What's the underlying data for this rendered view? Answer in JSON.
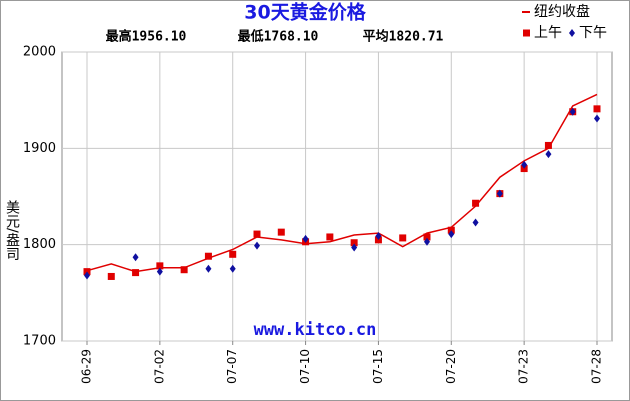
{
  "chart_data": {
    "type": "line",
    "title": "30天黄金价格",
    "stats": [
      "最高1956.10",
      "最低1768.10",
      "平均1820.71"
    ],
    "ylabel": "美元/盎司",
    "watermark": "www.kitco.cn",
    "categories": [
      "06-29",
      null,
      null,
      "07-02",
      null,
      null,
      "07-07",
      null,
      null,
      "07-10",
      null,
      null,
      "07-15",
      null,
      null,
      "07-20",
      null,
      null,
      "07-23",
      null,
      null,
      "07-28"
    ],
    "series": [
      {
        "name": "纽约收盘",
        "color": "#e00000",
        "kind": "line",
        "values": [
          1773,
          1780,
          1772,
          1776,
          1776,
          1786,
          1795,
          1808,
          1805,
          1801,
          1803,
          1810,
          1812,
          1798,
          1812,
          1818,
          1840,
          1870,
          1887,
          1900,
          1944,
          1956
        ]
      },
      {
        "name": "上午",
        "color": "#e00000",
        "kind": "square",
        "values": [
          1772,
          1767,
          1771,
          1778,
          1774,
          1788,
          1790,
          1811,
          1813,
          1803,
          1808,
          1802,
          1805,
          1807,
          1808,
          1815,
          1843,
          1853,
          1879,
          1903,
          1938,
          1941
        ]
      },
      {
        "name": "下午",
        "color": "#1010a0",
        "kind": "diamond",
        "values": [
          1768,
          null,
          1787,
          1772,
          null,
          1775,
          1775,
          1799,
          null,
          1806,
          null,
          1797,
          1809,
          null,
          1803,
          1811,
          1823,
          1853,
          1883,
          1894,
          1938,
          1931
        ]
      }
    ],
    "ylim": [
      1700,
      2000
    ],
    "yticks": [
      1700,
      1800,
      1900,
      2000
    ],
    "grid": true
  }
}
